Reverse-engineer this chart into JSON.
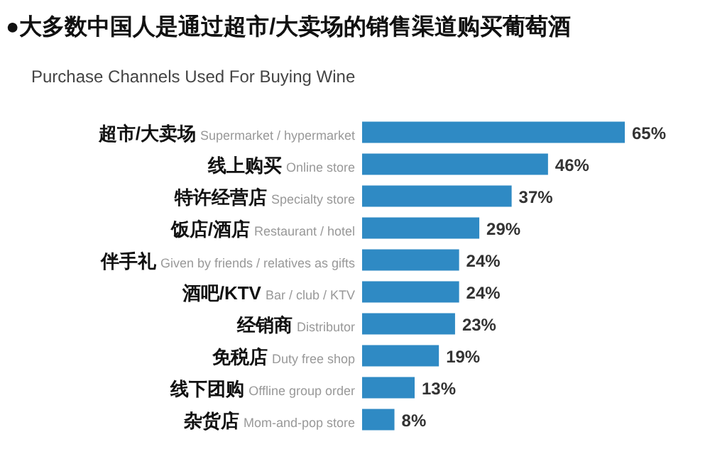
{
  "chart_data": {
    "type": "bar",
    "orientation": "horizontal",
    "title": "●大多数中国人是通过超市/大卖场的销售渠道购买葡萄酒",
    "subtitle": "Purchase Channels Used For Buying Wine",
    "categories": [
      "超市/大卖场 Supermarket / hypermarket",
      "线上购买 Online store",
      "特许经营店 Specialty store",
      "饭店/酒店 Restaurant / hotel",
      "伴手礼 Given by friends / relatives as gifts",
      "酒吧/KTV Bar / club / KTV",
      "经销商 Distributor",
      "免税店 Duty free shop",
      "线下团购 Offline group order",
      "杂货店 Mom-and-pop store"
    ],
    "values": [
      65,
      46,
      37,
      29,
      24,
      24,
      23,
      19,
      13,
      8
    ],
    "value_labels": [
      "65%",
      "46%",
      "37%",
      "29%",
      "24%",
      "24%",
      "23%",
      "19%",
      "13%",
      "8%"
    ],
    "color": "#2f8ac4"
  }
}
